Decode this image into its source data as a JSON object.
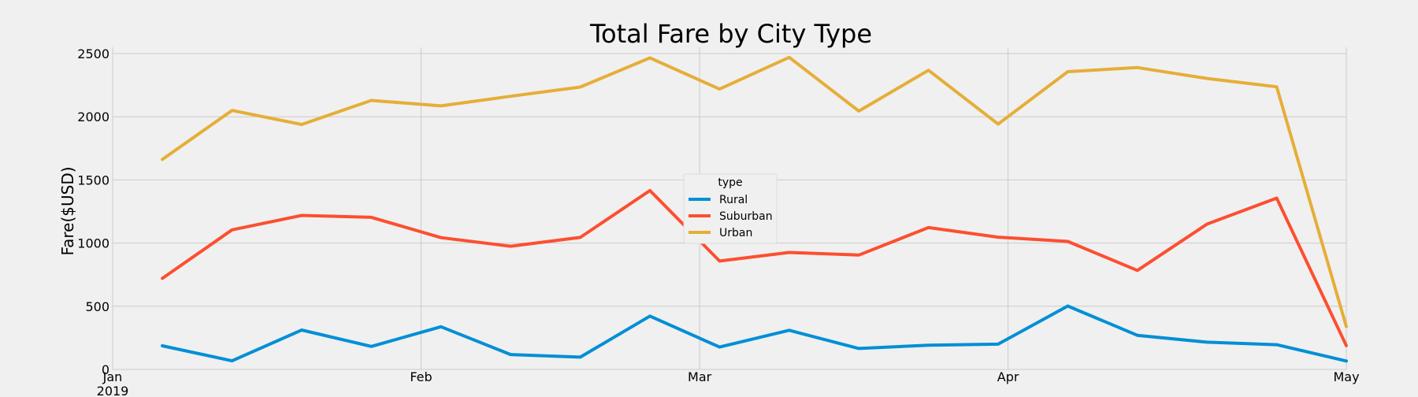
{
  "chart_data": {
    "type": "line",
    "title": "Total Fare by City Type",
    "xlabel": "",
    "ylabel": "Fare($USD)",
    "ylim": [
      0,
      2550
    ],
    "y_ticks": [
      0,
      500,
      1000,
      1500,
      2000,
      2500
    ],
    "x": [
      "2019-01-06",
      "2019-01-13",
      "2019-01-20",
      "2019-01-27",
      "2019-02-03",
      "2019-02-10",
      "2019-02-17",
      "2019-02-24",
      "2019-03-03",
      "2019-03-10",
      "2019-03-17",
      "2019-03-24",
      "2019-03-31",
      "2019-04-07",
      "2019-04-14",
      "2019-04-21",
      "2019-04-28",
      "2019-05-05"
    ],
    "x_ticks": [
      {
        "label": "Jan",
        "sublabel": "2019"
      },
      {
        "label": "Feb",
        "sublabel": ""
      },
      {
        "label": "Mar",
        "sublabel": ""
      },
      {
        "label": "Apr",
        "sublabel": ""
      },
      {
        "label": "May",
        "sublabel": ""
      }
    ],
    "grid": true,
    "legend": {
      "title": "type",
      "placement": "center"
    },
    "series": [
      {
        "name": "Rural",
        "color": "#008fd5",
        "values": [
          187,
          68,
          312,
          182,
          338,
          118,
          97,
          422,
          177,
          310,
          166,
          192,
          200,
          502,
          270,
          216,
          196,
          67
        ]
      },
      {
        "name": "Suburban",
        "color": "#fc4f30",
        "values": [
          721,
          1105,
          1219,
          1204,
          1043,
          975,
          1045,
          1416,
          858,
          926,
          905,
          1123,
          1047,
          1013,
          784,
          1150,
          1356,
          188
        ]
      },
      {
        "name": "Urban",
        "color": "#e5ae38",
        "values": [
          1662,
          2050,
          1939,
          2129,
          2086,
          2162,
          2235,
          2466,
          2219,
          2470,
          2045,
          2368,
          1942,
          2357,
          2389,
          2303,
          2237,
          340
        ]
      }
    ]
  }
}
